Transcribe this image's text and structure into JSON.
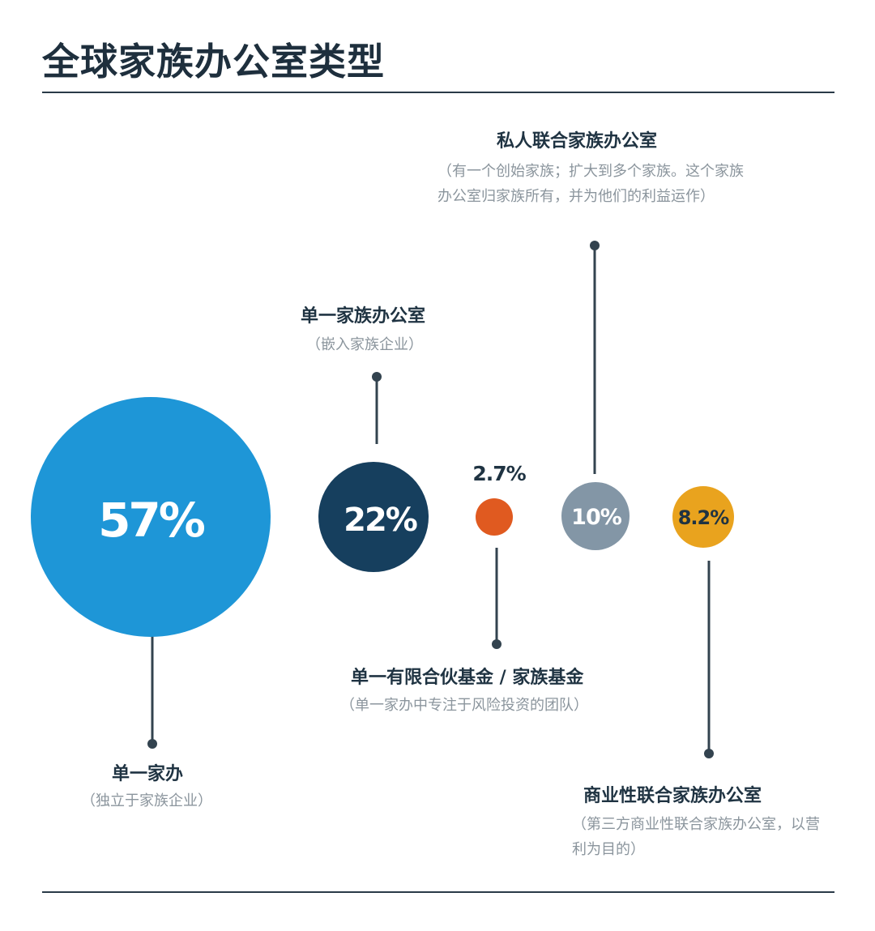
{
  "title": "全球家族办公室类型",
  "chart_data": {
    "type": "bubble",
    "title": "全球家族办公室类型",
    "series": [
      {
        "name": "单一家办",
        "description": "（独立于家族企业）",
        "value": 57,
        "label": "57%",
        "color": "#1e96d7"
      },
      {
        "name": "单一家族办公室",
        "description": "（嵌入家族企业）",
        "value": 22,
        "label": "22%",
        "color": "#163f5e"
      },
      {
        "name": "单一有限合伙基金 / 家族基金",
        "description": "（单一家办中专注于风险投资的团队）",
        "value": 2.7,
        "label": "2.7%",
        "color": "#e05a20"
      },
      {
        "name": "私人联合家族办公室",
        "description": "（有一个创始家族；扩大到多个家族。这个家族办公室归家族所有，并为他们的利益运作）",
        "value": 10,
        "label": "10%",
        "color": "#8396a6"
      },
      {
        "name": "商业性联合家族办公室",
        "description": "（第三方商业性联合家族办公室，以营利为目的）",
        "value": 8.2,
        "label": "8.2%",
        "color": "#e9a31e"
      }
    ]
  }
}
